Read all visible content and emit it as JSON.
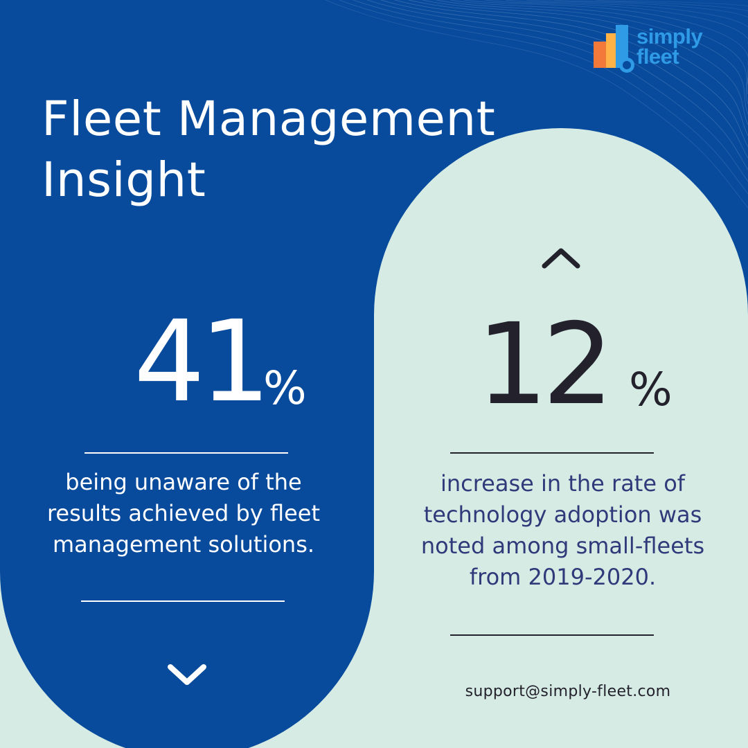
{
  "colors": {
    "background": "#d6ebe4",
    "primary_blue": "#084b9d",
    "dark_text": "#23222c",
    "navy_text": "#2f3a7a",
    "white": "#ffffff",
    "logo_blue": "#2f9ae6",
    "logo_orange": "#f2793a"
  },
  "brand": {
    "logo_line1": "simply",
    "logo_line2": "fleet",
    "icon": "bar-chart-logo-icon"
  },
  "title": "Fleet Management Insight",
  "stats": {
    "left": {
      "number": "41",
      "unit": "%",
      "description": "being unaware of the results achieved by fleet management solutions.",
      "icon": "chevron-down-icon"
    },
    "right": {
      "number": "12",
      "unit": "%",
      "description": "increase in the rate of technology adoption was noted among small-fleets from 2019-2020.",
      "icon": "chevron-up-icon"
    }
  },
  "contact_email": "support@simply-fleet.com"
}
